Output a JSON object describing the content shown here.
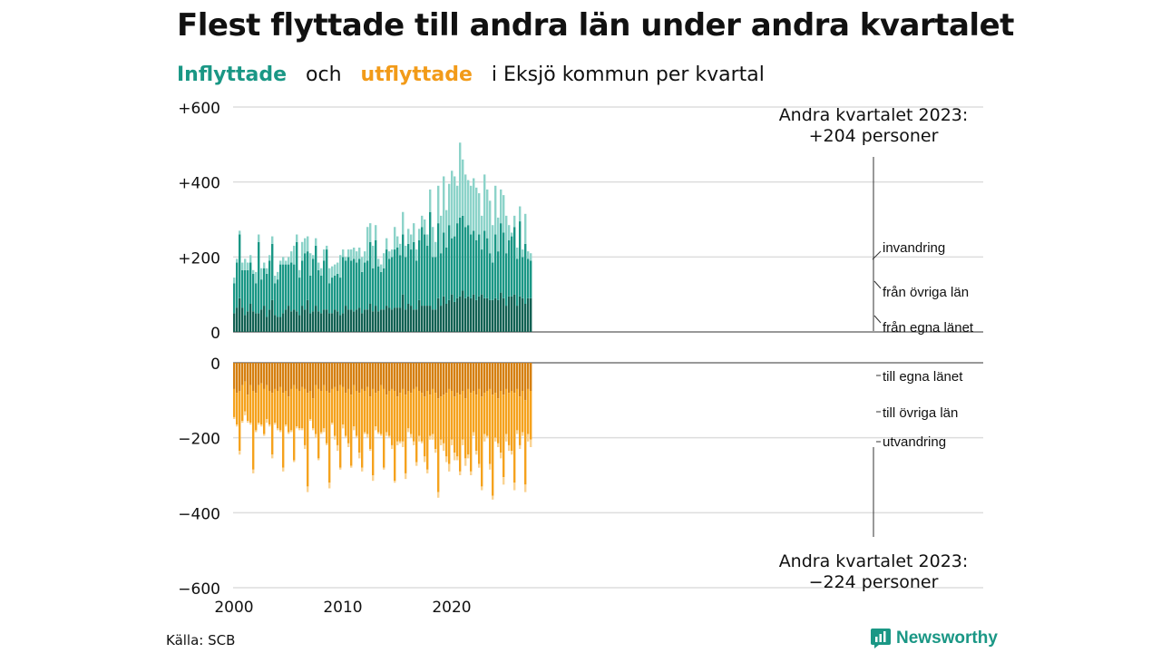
{
  "title": "Flest flyttade till andra län under andra kvartalet",
  "subtitle": {
    "part1": "Inflyttade",
    "part2": "och",
    "part3": "utflyttade",
    "part4": "i Eksjö kommun per kvartal"
  },
  "source": "Källa: SCB",
  "brand": "Newsworthy",
  "colors": {
    "in_own": "#126153",
    "in_other": "#1a9785",
    "in_immig": "#8cd3c9",
    "out_own": "#d57f10",
    "out_other": "#f5a21d",
    "out_emig": "#fad392",
    "text_in": "#1a9785",
    "text_out": "#f29b19",
    "grid": "#dddddd"
  },
  "chart_data": {
    "type": "bar",
    "stacked": true,
    "diverging": true,
    "start": "2000 Q1",
    "x_ticks": [
      2000,
      2010,
      2020
    ],
    "y_ticks": [
      "+600",
      "+400",
      "+200",
      "0",
      "0",
      "−200",
      "−400",
      "−600"
    ],
    "ylim": [
      -600,
      600
    ],
    "grid": true,
    "series": [
      {
        "name": "från egna länet",
        "values": [
          50,
          65,
          90,
          65,
          45,
          55,
          75,
          55,
          50,
          50,
          60,
          70,
          40,
          60,
          85,
          45,
          40,
          40,
          50,
          60,
          70,
          55,
          60,
          55,
          45,
          70,
          60,
          85,
          50,
          55,
          70,
          55,
          50,
          60,
          60,
          50,
          50,
          60,
          55,
          45,
          50,
          70,
          60,
          60,
          55,
          60,
          65,
          50,
          60,
          60,
          75,
          55,
          70,
          55,
          60,
          60,
          70,
          65,
          60,
          65,
          65,
          65,
          100,
          60,
          75,
          70,
          60,
          60,
          85,
          70,
          70,
          70,
          70,
          60,
          60,
          90,
          70,
          95,
          75,
          85,
          100,
          80,
          90,
          95,
          110,
          90,
          95,
          90,
          100,
          85,
          95,
          100,
          90,
          90,
          85,
          85,
          90,
          85,
          105,
          90,
          70,
          95,
          95,
          100,
          70,
          95,
          90,
          75,
          90,
          90
        ]
      },
      {
        "name": "från övriga län",
        "values": [
          80,
          120,
          170,
          100,
          120,
          110,
          110,
          100,
          80,
          190,
          80,
          100,
          115,
          130,
          150,
          85,
          100,
          140,
          130,
          120,
          110,
          130,
          120,
          185,
          100,
          120,
          150,
          130,
          100,
          140,
          160,
          110,
          100,
          130,
          160,
          80,
          95,
          90,
          100,
          100,
          150,
          120,
          140,
          130,
          140,
          125,
          130,
          110,
          125,
          130,
          165,
          115,
          175,
          120,
          100,
          110,
          150,
          130,
          140,
          155,
          160,
          140,
          160,
          140,
          160,
          150,
          180,
          130,
          160,
          210,
          190,
          160,
          250,
          140,
          140,
          200,
          140,
          170,
          150,
          200,
          150,
          175,
          200,
          210,
          200,
          190,
          190,
          170,
          170,
          160,
          165,
          120,
          180,
          160,
          125,
          100,
          170,
          130,
          185,
          175,
          140,
          150,
          160,
          180,
          125,
          200,
          110,
          160,
          105,
          100
        ]
      },
      {
        "name": "invandring",
        "values": [
          15,
          10,
          10,
          20,
          30,
          20,
          20,
          10,
          30,
          20,
          30,
          15,
          15,
          15,
          20,
          20,
          20,
          10,
          20,
          10,
          20,
          30,
          50,
          20,
          20,
          50,
          40,
          40,
          60,
          10,
          20,
          20,
          20,
          30,
          10,
          40,
          30,
          30,
          30,
          60,
          20,
          10,
          20,
          30,
          30,
          30,
          30,
          40,
          30,
          90,
          50,
          60,
          40,
          20,
          20,
          40,
          30,
          20,
          20,
          60,
          30,
          30,
          60,
          30,
          40,
          40,
          50,
          30,
          30,
          30,
          40,
          30,
          60,
          80,
          40,
          100,
          100,
          150,
          100,
          110,
          180,
          160,
          100,
          200,
          150,
          140,
          120,
          130,
          140,
          140,
          110,
          90,
          150,
          130,
          140,
          100,
          130,
          90,
          90,
          100,
          100,
          40,
          10,
          30,
          30,
          40,
          20,
          80,
          20,
          20
        ]
      },
      {
        "name": "till egna länet",
        "values": [
          -70,
          -80,
          -75,
          -60,
          -50,
          -85,
          -60,
          -75,
          -80,
          -60,
          -55,
          -70,
          -60,
          -75,
          -80,
          -70,
          -75,
          -65,
          -80,
          -75,
          -90,
          -70,
          -60,
          -70,
          -75,
          -65,
          -70,
          -80,
          -75,
          -95,
          -60,
          -70,
          -75,
          -60,
          -75,
          -80,
          -70,
          -65,
          -75,
          -60,
          -65,
          -80,
          -70,
          -85,
          -60,
          -75,
          -80,
          -70,
          -75,
          -65,
          -90,
          -70,
          -80,
          -75,
          -60,
          -70,
          -85,
          -75,
          -70,
          -75,
          -90,
          -80,
          -70,
          -85,
          -75,
          -80,
          -70,
          -65,
          -75,
          -80,
          -90,
          -75,
          -85,
          -70,
          -80,
          -95,
          -90,
          -85,
          -80,
          -70,
          -75,
          -90,
          -80,
          -85,
          -75,
          -95,
          -70,
          -80,
          -75,
          -85,
          -70,
          -90,
          -80,
          -75,
          -70,
          -85,
          -80,
          -95,
          -75,
          -85,
          -70,
          -80,
          -75,
          -80,
          -70,
          -90,
          -75,
          -100,
          -70,
          -75
        ]
      },
      {
        "name": "till övriga län",
        "values": [
          -75,
          -85,
          -160,
          -95,
          -80,
          -70,
          -100,
          -210,
          -100,
          -100,
          -110,
          -120,
          -90,
          -90,
          -165,
          -90,
          -100,
          -115,
          -200,
          -90,
          -95,
          -110,
          -200,
          -100,
          -100,
          -110,
          -150,
          -250,
          -75,
          -80,
          -130,
          -185,
          -110,
          -115,
          -140,
          -240,
          -90,
          -130,
          -145,
          -220,
          -100,
          -115,
          -145,
          -190,
          -110,
          -120,
          -160,
          -210,
          -110,
          -125,
          -140,
          -230,
          -90,
          -110,
          -130,
          -210,
          -100,
          -120,
          -150,
          -240,
          -120,
          -130,
          -140,
          -210,
          -100,
          -110,
          -140,
          -200,
          -120,
          -130,
          -160,
          -210,
          -110,
          -120,
          -150,
          -250,
          -115,
          -130,
          -170,
          -200,
          -130,
          -150,
          -170,
          -205,
          -130,
          -160,
          -175,
          -210,
          -110,
          -150,
          -200,
          -240,
          -110,
          -120,
          -200,
          -270,
          -120,
          -120,
          -165,
          -220,
          -120,
          -140,
          -160,
          -240,
          -110,
          -130,
          -110,
          -225,
          -120,
          -130
        ]
      },
      {
        "name": "utvandring",
        "values": [
          -5,
          -5,
          -10,
          -5,
          -10,
          -5,
          -5,
          -10,
          -5,
          -5,
          -5,
          -5,
          -10,
          -5,
          -10,
          -5,
          -5,
          -5,
          -10,
          -5,
          -5,
          -5,
          -5,
          -5,
          -5,
          -5,
          -10,
          -15,
          -5,
          -5,
          -10,
          -5,
          -5,
          -10,
          -5,
          -15,
          -5,
          -10,
          -15,
          -5,
          -10,
          -5,
          -10,
          -5,
          -10,
          -5,
          -15,
          -10,
          -5,
          -10,
          -5,
          -15,
          -10,
          -5,
          -5,
          -5,
          -10,
          -5,
          -10,
          -5,
          -10,
          -5,
          -15,
          -15,
          -10,
          -10,
          -10,
          -10,
          -15,
          -5,
          -15,
          -10,
          -10,
          -15,
          -10,
          -15,
          -15,
          -20,
          -15,
          -20,
          -15,
          -20,
          -10,
          -10,
          -15,
          -20,
          -10,
          -10,
          -10,
          -10,
          -10,
          -10,
          -20,
          -5,
          -15,
          -10,
          -10,
          -10,
          -15,
          -20,
          -20,
          -15,
          -10,
          -20,
          -10,
          -10,
          -10,
          -20,
          -20,
          -20
        ]
      }
    ],
    "legend_in": [
      "invandring",
      "från övriga län",
      "från egna länet"
    ],
    "legend_out": [
      "till egna länet",
      "till övriga län",
      "utvandring"
    ],
    "annotation_top": [
      "Andra kvartalet 2023:",
      "+204 personer"
    ],
    "annotation_bottom": [
      "Andra kvartalet 2023:",
      "−224 personer"
    ]
  }
}
